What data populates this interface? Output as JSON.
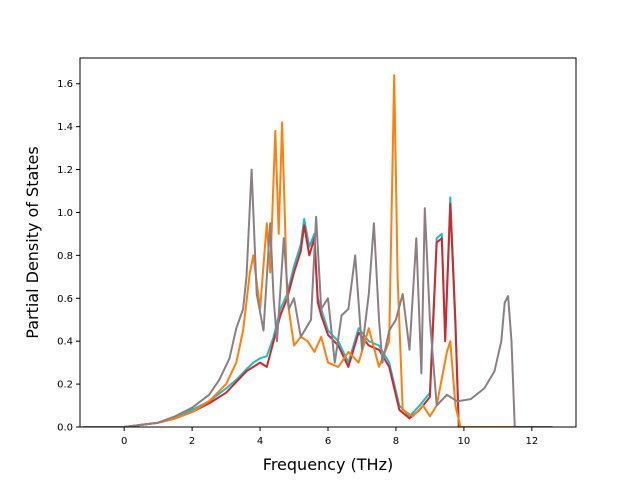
{
  "chart_data": {
    "type": "line",
    "title": "",
    "xlabel": "Frequency (THz)",
    "ylabel": "Partial Density of States",
    "xlim": [
      -1.3,
      13.3
    ],
    "ylim": [
      0.0,
      1.72
    ],
    "xticks": [
      0,
      2,
      4,
      6,
      8,
      10,
      12
    ],
    "yticks": [
      0.0,
      0.2,
      0.4,
      0.6,
      0.8,
      1.0,
      1.2,
      1.4,
      1.6
    ],
    "xtick_labels": [
      "0",
      "2",
      "4",
      "6",
      "8",
      "10",
      "12"
    ],
    "ytick_labels": [
      "0.0",
      "0.2",
      "0.4",
      "0.6",
      "0.8",
      "1.0",
      "1.2",
      "1.4",
      "1.6"
    ],
    "grid": false,
    "legend": "none",
    "series": [
      {
        "color": "#17becf",
        "points": [
          [
            -1.2,
            0
          ],
          [
            0,
            0
          ],
          [
            0.5,
            0.01
          ],
          [
            1,
            0.02
          ],
          [
            1.5,
            0.04
          ],
          [
            2,
            0.08
          ],
          [
            2.5,
            0.12
          ],
          [
            3,
            0.18
          ],
          [
            3.3,
            0.22
          ],
          [
            3.6,
            0.27
          ],
          [
            3.8,
            0.3
          ],
          [
            4,
            0.32
          ],
          [
            4.2,
            0.33
          ],
          [
            4.4,
            0.42
          ],
          [
            4.6,
            0.55
          ],
          [
            4.8,
            0.62
          ],
          [
            5,
            0.75
          ],
          [
            5.2,
            0.85
          ],
          [
            5.3,
            0.97
          ],
          [
            5.45,
            0.84
          ],
          [
            5.6,
            0.9
          ],
          [
            5.7,
            0.6
          ],
          [
            5.8,
            0.55
          ],
          [
            6,
            0.45
          ],
          [
            6.3,
            0.4
          ],
          [
            6.6,
            0.3
          ],
          [
            6.9,
            0.46
          ],
          [
            7.2,
            0.4
          ],
          [
            7.5,
            0.38
          ],
          [
            7.8,
            0.3
          ],
          [
            8.1,
            0.1
          ],
          [
            8.4,
            0.05
          ],
          [
            8.7,
            0.1
          ],
          [
            9,
            0.16
          ],
          [
            9.2,
            0.88
          ],
          [
            9.35,
            0.9
          ],
          [
            9.45,
            0.42
          ],
          [
            9.6,
            1.07
          ],
          [
            9.75,
            0.5
          ],
          [
            9.85,
            0.0
          ],
          [
            12.6,
            0
          ]
        ]
      },
      {
        "color": "#d62728",
        "points": [
          [
            -1.2,
            0
          ],
          [
            0,
            0
          ],
          [
            0.5,
            0.01
          ],
          [
            1,
            0.02
          ],
          [
            1.5,
            0.04
          ],
          [
            2,
            0.07
          ],
          [
            2.5,
            0.11
          ],
          [
            3,
            0.16
          ],
          [
            3.3,
            0.21
          ],
          [
            3.6,
            0.26
          ],
          [
            3.8,
            0.28
          ],
          [
            4,
            0.3
          ],
          [
            4.2,
            0.28
          ],
          [
            4.4,
            0.4
          ],
          [
            4.6,
            0.52
          ],
          [
            4.8,
            0.6
          ],
          [
            5,
            0.72
          ],
          [
            5.2,
            0.82
          ],
          [
            5.3,
            0.94
          ],
          [
            5.45,
            0.8
          ],
          [
            5.6,
            0.88
          ],
          [
            5.7,
            0.58
          ],
          [
            5.8,
            0.52
          ],
          [
            6,
            0.43
          ],
          [
            6.3,
            0.38
          ],
          [
            6.6,
            0.28
          ],
          [
            6.9,
            0.44
          ],
          [
            7.2,
            0.38
          ],
          [
            7.5,
            0.36
          ],
          [
            7.8,
            0.28
          ],
          [
            8.1,
            0.08
          ],
          [
            8.4,
            0.04
          ],
          [
            8.7,
            0.08
          ],
          [
            9,
            0.14
          ],
          [
            9.2,
            0.86
          ],
          [
            9.35,
            0.88
          ],
          [
            9.45,
            0.4
          ],
          [
            9.6,
            1.04
          ],
          [
            9.75,
            0.48
          ],
          [
            9.85,
            0.0
          ],
          [
            12.6,
            0
          ]
        ]
      },
      {
        "color": "#ff7f0e",
        "points": [
          [
            -1.2,
            0
          ],
          [
            0,
            0
          ],
          [
            0.5,
            0.01
          ],
          [
            1,
            0.02
          ],
          [
            1.5,
            0.04
          ],
          [
            2,
            0.07
          ],
          [
            2.5,
            0.12
          ],
          [
            3,
            0.2
          ],
          [
            3.3,
            0.3
          ],
          [
            3.5,
            0.45
          ],
          [
            3.7,
            0.72
          ],
          [
            3.8,
            0.8
          ],
          [
            4,
            0.55
          ],
          [
            4.2,
            0.95
          ],
          [
            4.3,
            0.72
          ],
          [
            4.45,
            1.38
          ],
          [
            4.55,
            0.9
          ],
          [
            4.65,
            1.42
          ],
          [
            4.8,
            0.6
          ],
          [
            5,
            0.38
          ],
          [
            5.2,
            0.42
          ],
          [
            5.4,
            0.4
          ],
          [
            5.6,
            0.35
          ],
          [
            5.8,
            0.42
          ],
          [
            6,
            0.3
          ],
          [
            6.3,
            0.28
          ],
          [
            6.6,
            0.35
          ],
          [
            6.9,
            0.3
          ],
          [
            7.2,
            0.46
          ],
          [
            7.5,
            0.28
          ],
          [
            7.8,
            0.4
          ],
          [
            7.95,
            1.64
          ],
          [
            8.05,
            0.7
          ],
          [
            8.2,
            0.08
          ],
          [
            8.5,
            0.05
          ],
          [
            8.8,
            0.1
          ],
          [
            9,
            0.05
          ],
          [
            9.2,
            0.1
          ],
          [
            9.5,
            0.35
          ],
          [
            9.6,
            0.4
          ],
          [
            9.75,
            0.1
          ],
          [
            9.9,
            0.0
          ],
          [
            12.6,
            0
          ]
        ]
      },
      {
        "color": "#8c7f84",
        "points": [
          [
            -1.2,
            0
          ],
          [
            0,
            0
          ],
          [
            0.5,
            0.01
          ],
          [
            1,
            0.02
          ],
          [
            1.5,
            0.05
          ],
          [
            2,
            0.09
          ],
          [
            2.5,
            0.15
          ],
          [
            2.8,
            0.22
          ],
          [
            3.1,
            0.32
          ],
          [
            3.3,
            0.46
          ],
          [
            3.5,
            0.55
          ],
          [
            3.6,
            0.7
          ],
          [
            3.75,
            1.2
          ],
          [
            3.9,
            0.62
          ],
          [
            4.1,
            0.45
          ],
          [
            4.3,
            0.95
          ],
          [
            4.4,
            0.6
          ],
          [
            4.5,
            0.4
          ],
          [
            4.7,
            0.88
          ],
          [
            4.85,
            0.55
          ],
          [
            5,
            0.6
          ],
          [
            5.2,
            0.42
          ],
          [
            5.5,
            0.5
          ],
          [
            5.65,
            0.98
          ],
          [
            5.8,
            0.55
          ],
          [
            6,
            0.6
          ],
          [
            6.2,
            0.3
          ],
          [
            6.4,
            0.52
          ],
          [
            6.6,
            0.55
          ],
          [
            6.8,
            0.8
          ],
          [
            7,
            0.36
          ],
          [
            7.2,
            0.62
          ],
          [
            7.35,
            0.95
          ],
          [
            7.5,
            0.5
          ],
          [
            7.6,
            0.3
          ],
          [
            7.8,
            0.45
          ],
          [
            8,
            0.5
          ],
          [
            8.2,
            0.62
          ],
          [
            8.4,
            0.36
          ],
          [
            8.6,
            0.88
          ],
          [
            8.75,
            0.25
          ],
          [
            8.85,
            1.02
          ],
          [
            9,
            0.5
          ],
          [
            9.2,
            0.1
          ],
          [
            9.5,
            0.15
          ],
          [
            9.8,
            0.12
          ],
          [
            10.2,
            0.13
          ],
          [
            10.6,
            0.18
          ],
          [
            10.9,
            0.26
          ],
          [
            11.1,
            0.4
          ],
          [
            11.2,
            0.58
          ],
          [
            11.3,
            0.61
          ],
          [
            11.4,
            0.4
          ],
          [
            11.5,
            0.0
          ],
          [
            12.6,
            0
          ]
        ]
      }
    ]
  }
}
